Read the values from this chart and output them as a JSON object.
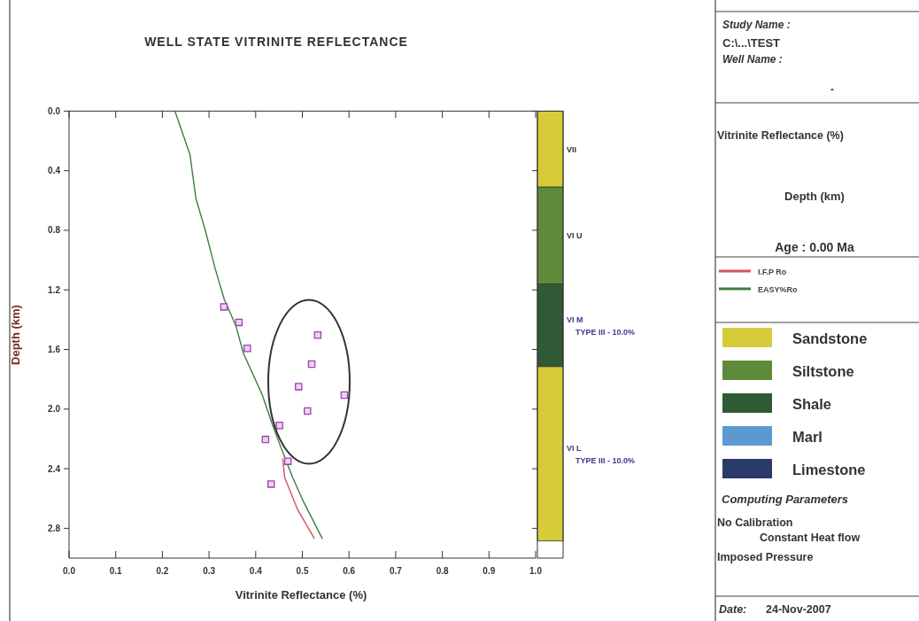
{
  "chart_data": [
    {
      "type": "line",
      "title": "WELL STATE VITRINITE REFLECTANCE",
      "xlabel": "Vitrinite Reflectance (%)",
      "ylabel": "Depth (km)",
      "xlim": [
        0,
        1.0
      ],
      "xticks": [
        {
          "value": 0,
          "label": "0.0"
        },
        0.1,
        0.2,
        0.3,
        0.4,
        0.5,
        0.6,
        0.7,
        0.8,
        0.9,
        {
          "value": 1,
          "label": "1.0"
        }
      ],
      "ylim": [
        3.0,
        0
      ],
      "yticks": [
        {
          "value": 0,
          "label": "0.0"
        },
        0.4,
        0.8,
        1.2,
        1.6,
        {
          "value": 2,
          "label": "2.0"
        },
        2.4,
        2.8
      ],
      "legend": "right",
      "series": [
        {
          "name": "I.F.P Ro",
          "type": "line",
          "color": "#d8505a",
          "x": [
            0.458,
            0.462,
            0.489,
            0.526
          ],
          "values": [
            2.33,
            2.457,
            2.669,
            2.87
          ]
        },
        {
          "name": "EASY%Ro",
          "type": "line",
          "color": "#3d7f3d",
          "x": [
            0.227,
            0.259,
            0.272,
            0.292,
            0.313,
            0.333,
            0.357,
            0.374,
            0.414,
            0.435,
            0.455,
            0.479,
            0.503,
            0.543
          ],
          "values": [
            0,
            0.29,
            0.588,
            0.8,
            1.055,
            1.267,
            1.436,
            1.628,
            1.904,
            2.096,
            2.265,
            2.457,
            2.625,
            2.87
          ]
        },
        {
          "type": "scatter",
          "color": "#a040b0",
          "marker": "square",
          "x": [
            0.332,
            0.364,
            0.382,
            0.533,
            0.52,
            0.492,
            0.59,
            0.511,
            0.451,
            0.421,
            0.469,
            0.433
          ],
          "values": [
            1.314,
            1.418,
            1.592,
            1.503,
            1.698,
            1.849,
            1.906,
            2.013,
            2.11,
            2.204,
            2.35,
            2.503
          ]
        }
      ]
    },
    {
      "type": "bar",
      "stacked": true,
      "categories": [
        null
      ],
      "ylim": [
        3.0,
        0
      ],
      "yticks": [
        0,
        0.4,
        0.8,
        1.2,
        1.6,
        2,
        2.4,
        2.8
      ],
      "tick_labels": false,
      "series": [
        {
          "name": "VII",
          "color": "#d6cc3a",
          "values": [
            0.51
          ]
        },
        {
          "name": "VI U",
          "color": "#5e8a3a",
          "values": [
            0.65
          ]
        },
        {
          "name": "VI M\nTYPE III - 10.0%",
          "color": "#2f5a35",
          "values": [
            0.555
          ]
        },
        {
          "name": "VI L\nTYPE III - 10.0%",
          "color": "#d6cc3a",
          "values": [
            1.17
          ]
        }
      ]
    },
    {
      "type": "other",
      "annotations": [
        "Study Name :",
        "C:\\...\\TEST",
        "Well Name :",
        "-",
        "Vitrinite Reflectance (%)",
        "Depth (km)",
        "Age : 0.00 Ma",
        "Sandstone",
        "Siltstone",
        "Shale",
        "Marl",
        "Limestone",
        "Computing Parameters",
        "No Calibration",
        "Constant Heat flow",
        "Imposed Pressure",
        "Date:",
        "24-Nov-2007"
      ]
    }
  ]
}
